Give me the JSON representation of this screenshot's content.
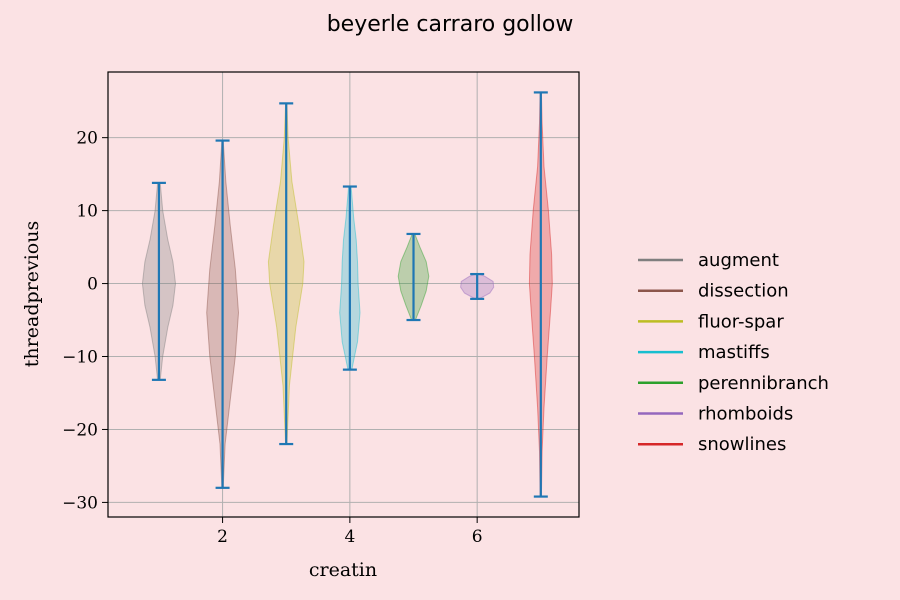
{
  "chart_data": {
    "type": "violin",
    "title": "beyerle carraro gollow",
    "xlabel": "creatin",
    "ylabel": "threadprevious",
    "xlim": [
      0.2,
      7.6
    ],
    "ylim": [
      -32,
      29
    ],
    "xticks": [
      2,
      4,
      6
    ],
    "yticks": [
      20,
      10,
      0,
      -10,
      -20,
      -30
    ],
    "grid": true,
    "legend_position": "right",
    "extrema_color": "#1f77b4",
    "series": [
      {
        "name": "augment",
        "x": 1,
        "color": "#7f7f7f",
        "min": -13.2,
        "max": 13.8,
        "density": [
          [
            -13.2,
            0.02
          ],
          [
            -10,
            0.06
          ],
          [
            -6,
            0.14
          ],
          [
            -3,
            0.22
          ],
          [
            0,
            0.26
          ],
          [
            3,
            0.22
          ],
          [
            6,
            0.14
          ],
          [
            10,
            0.06
          ],
          [
            13.8,
            0.02
          ]
        ]
      },
      {
        "name": "dissection",
        "x": 2,
        "color": "#8c564b",
        "min": -28,
        "max": 19.6,
        "density": [
          [
            -28,
            0.01
          ],
          [
            -22,
            0.04
          ],
          [
            -16,
            0.12
          ],
          [
            -10,
            0.2
          ],
          [
            -4,
            0.25
          ],
          [
            2,
            0.2
          ],
          [
            8,
            0.12
          ],
          [
            14,
            0.05
          ],
          [
            19.6,
            0.01
          ]
        ]
      },
      {
        "name": "fluor-spar",
        "x": 3,
        "color": "#bcbd22",
        "min": -22,
        "max": 24.7,
        "density": [
          [
            -22,
            0.01
          ],
          [
            -14,
            0.05
          ],
          [
            -6,
            0.15
          ],
          [
            0,
            0.26
          ],
          [
            3,
            0.28
          ],
          [
            8,
            0.2
          ],
          [
            14,
            0.09
          ],
          [
            20,
            0.03
          ],
          [
            24.7,
            0.01
          ]
        ]
      },
      {
        "name": "mastiffs",
        "x": 4,
        "color": "#17becf",
        "min": -11.8,
        "max": 13.3,
        "density": [
          [
            -11.8,
            0.03
          ],
          [
            -8,
            0.12
          ],
          [
            -4,
            0.16
          ],
          [
            0,
            0.13
          ],
          [
            3,
            0.12
          ],
          [
            6,
            0.1
          ],
          [
            9,
            0.06
          ],
          [
            13.3,
            0.02
          ]
        ]
      },
      {
        "name": "perennibranch",
        "x": 5,
        "color": "#2ca02c",
        "min": -5,
        "max": 6.8,
        "density": [
          [
            -5,
            0.03
          ],
          [
            -3,
            0.12
          ],
          [
            -1,
            0.2
          ],
          [
            1,
            0.24
          ],
          [
            3,
            0.2
          ],
          [
            5,
            0.1
          ],
          [
            6.8,
            0.02
          ]
        ]
      },
      {
        "name": "rhomboids",
        "x": 6,
        "color": "#9467bd",
        "min": -2.1,
        "max": 1.3,
        "density": [
          [
            -2.1,
            0.03
          ],
          [
            -1.3,
            0.2
          ],
          [
            -0.5,
            0.26
          ],
          [
            0.3,
            0.25
          ],
          [
            1,
            0.12
          ],
          [
            1.3,
            0.03
          ]
        ]
      },
      {
        "name": "snowlines",
        "x": 7,
        "color": "#d62728",
        "min": -29.2,
        "max": 26.2,
        "density": [
          [
            -29.2,
            0.01
          ],
          [
            -23,
            0.02
          ],
          [
            -17,
            0.05
          ],
          [
            -10,
            0.1
          ],
          [
            -4,
            0.15
          ],
          [
            0,
            0.18
          ],
          [
            4,
            0.17
          ],
          [
            10,
            0.12
          ],
          [
            16,
            0.05
          ],
          [
            22,
            0.02
          ],
          [
            26.2,
            0.01
          ]
        ]
      }
    ]
  }
}
